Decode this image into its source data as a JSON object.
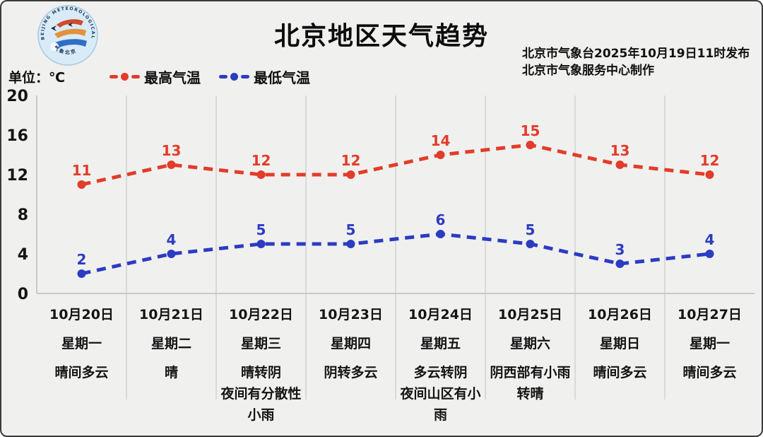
{
  "card": {
    "background": "#f0f0ef"
  },
  "header": {
    "title": "北京地区天气趋势",
    "publisher_line1": "北京市气象台2025年10月19日11时发布",
    "publisher_line2": "北京市气象服务中心制作",
    "logo": {
      "ring_text": "BEIJING METEOROLOGICAL SERVICE",
      "ring_bottom_text": "气象北京"
    }
  },
  "unit_label": "单位：℃",
  "legend": [
    {
      "label": "最高气温",
      "color": "#e23c2a"
    },
    {
      "label": "最低气温",
      "color": "#2b3cc2"
    }
  ],
  "chart_data": {
    "type": "line",
    "title": "北京地区天气趋势",
    "unit": "℃",
    "ylim": [
      0,
      20
    ],
    "yticks": [
      0,
      4,
      8,
      12,
      16,
      20
    ],
    "grid": "vertical-column-separators-only",
    "legend_position": "top-left",
    "line_style": "dashed-with-dot-markers",
    "categories": [
      {
        "date": "10月20日",
        "weekday": "星期一",
        "weather": "晴间多云"
      },
      {
        "date": "10月21日",
        "weekday": "星期二",
        "weather": "晴"
      },
      {
        "date": "10月22日",
        "weekday": "星期三",
        "weather": "晴转阴\n夜间有分散性小雨"
      },
      {
        "date": "10月23日",
        "weekday": "星期四",
        "weather": "阴转多云"
      },
      {
        "date": "10月24日",
        "weekday": "星期五",
        "weather": "多云转阴\n夜间山区有小雨"
      },
      {
        "date": "10月25日",
        "weekday": "星期六",
        "weather": "阴西部有小雨转晴"
      },
      {
        "date": "10月26日",
        "weekday": "星期日",
        "weather": "晴间多云"
      },
      {
        "date": "10月27日",
        "weekday": "星期一",
        "weather": "晴间多云"
      }
    ],
    "series": [
      {
        "name": "最高气温",
        "color": "#e23c2a",
        "values": [
          11,
          13,
          12,
          12,
          14,
          15,
          13,
          12
        ]
      },
      {
        "name": "最低气温",
        "color": "#2b3cc2",
        "values": [
          2,
          4,
          5,
          5,
          6,
          5,
          3,
          4
        ]
      }
    ]
  }
}
